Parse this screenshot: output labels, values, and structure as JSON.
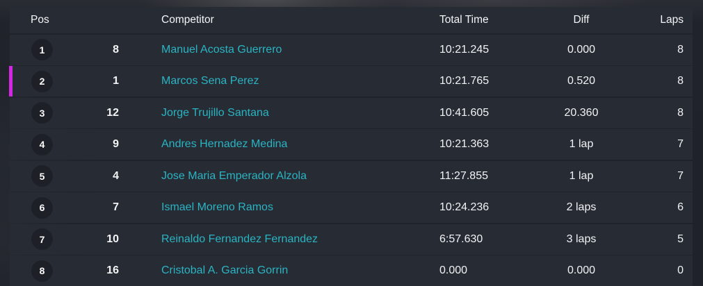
{
  "theme": {
    "accent_teal": "#2ab4c4",
    "highlight_magenta": "#d228e2",
    "row_bg": "#272b33",
    "page_bg": "#22252c",
    "pos_circle_bg": "#1d2127",
    "text_primary": "#f2f3f5"
  },
  "results_table": {
    "headers": {
      "pos": "Pos",
      "competitor": "Competitor",
      "total_time": "Total Time",
      "diff": "Diff",
      "laps": "Laps"
    },
    "rows": [
      {
        "pos": "1",
        "number": "8",
        "name": "Manuel Acosta Guerrero",
        "total_time": "10:21.245",
        "diff": "0.000",
        "laps": "8",
        "highlighted": false
      },
      {
        "pos": "2",
        "number": "1",
        "name": "Marcos Sena Perez",
        "total_time": "10:21.765",
        "diff": "0.520",
        "laps": "8",
        "highlighted": true
      },
      {
        "pos": "3",
        "number": "12",
        "name": "Jorge Trujillo Santana",
        "total_time": "10:41.605",
        "diff": "20.360",
        "laps": "8",
        "highlighted": false
      },
      {
        "pos": "4",
        "number": "9",
        "name": "Andres Hernadez Medina",
        "total_time": "10:21.363",
        "diff": "1 lap",
        "laps": "7",
        "highlighted": false
      },
      {
        "pos": "5",
        "number": "4",
        "name": "Jose Maria Emperador Alzola",
        "total_time": "11:27.855",
        "diff": "1 lap",
        "laps": "7",
        "highlighted": false
      },
      {
        "pos": "6",
        "number": "7",
        "name": "Ismael Moreno Ramos",
        "total_time": "10:24.236",
        "diff": "2 laps",
        "laps": "6",
        "highlighted": false
      },
      {
        "pos": "7",
        "number": "10",
        "name": "Reinaldo Fernandez Fernandez",
        "total_time": "6:57.630",
        "diff": "3 laps",
        "laps": "5",
        "highlighted": false
      },
      {
        "pos": "8",
        "number": "16",
        "name": "Cristobal A. Garcia Gorrin",
        "total_time": "0.000",
        "diff": "0.000",
        "laps": "0",
        "highlighted": false
      }
    ]
  }
}
